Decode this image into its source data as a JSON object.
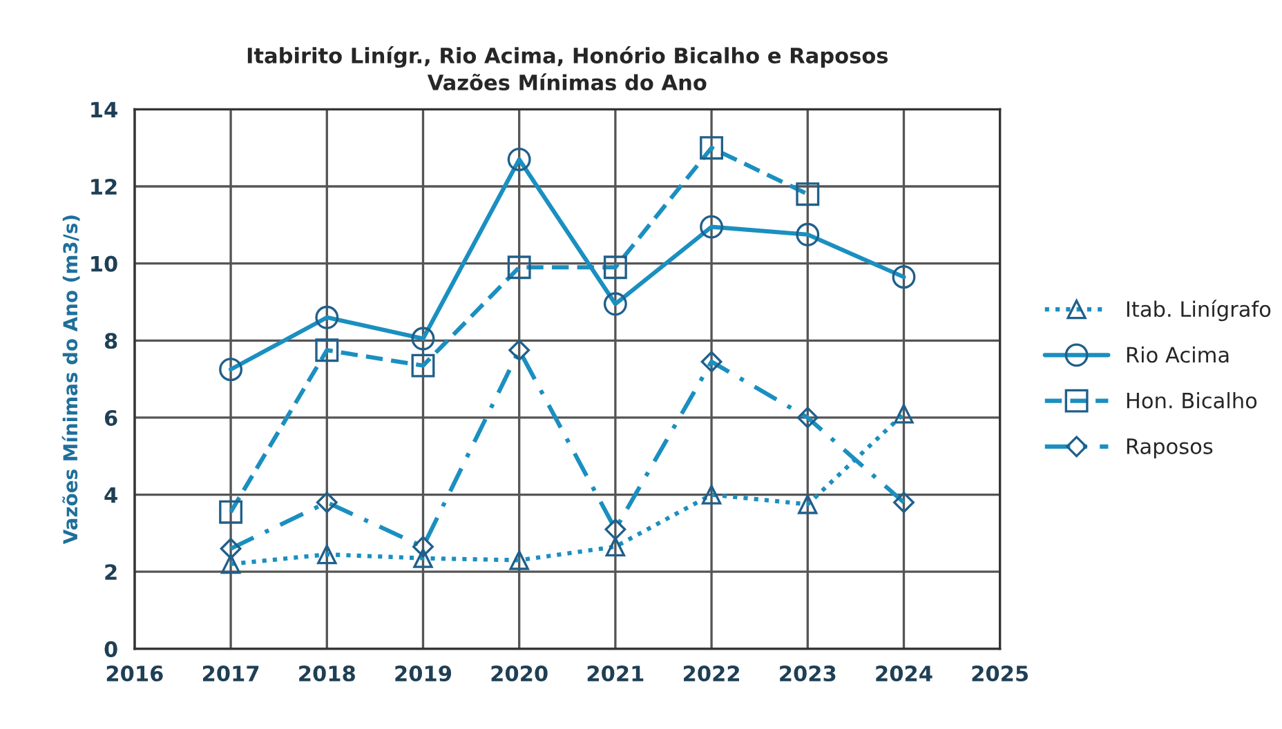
{
  "chart_data": {
    "type": "line",
    "title": "Itabirito Linígr., Rio Acima, Honório Bicalho e Raposos\nVazões Mínimas do Ano",
    "ylabel": "Vazões Mínimas do Ano (m3/s)",
    "x": [
      2017,
      2018,
      2019,
      2020,
      2021,
      2022,
      2023,
      2024
    ],
    "series": [
      {
        "name": "Itab. Linígrafo",
        "color": "#1a8fc0",
        "marker": "triangle",
        "line_style": "dotted",
        "values": [
          2.2,
          2.45,
          2.35,
          2.3,
          2.65,
          4.0,
          3.75,
          6.1
        ]
      },
      {
        "name": "Rio Acima",
        "color": "#1a8fc0",
        "marker": "circle",
        "line_style": "solid",
        "values": [
          7.25,
          8.6,
          8.05,
          12.7,
          8.95,
          10.95,
          10.75,
          9.65
        ]
      },
      {
        "name": "Hon. Bicalho",
        "color": "#1a8fc0",
        "marker": "square",
        "line_style": "dashed",
        "values": [
          3.55,
          7.75,
          7.35,
          9.9,
          9.9,
          13.0,
          11.8,
          null
        ]
      },
      {
        "name": "Raposos",
        "color": "#1a8fc0",
        "marker": "diamond",
        "line_style": "dashdot",
        "values": [
          2.6,
          3.8,
          2.65,
          7.75,
          3.1,
          7.45,
          6.0,
          3.8
        ]
      }
    ],
    "xlim": [
      2016,
      2025
    ],
    "xticks": [
      2016,
      2017,
      2018,
      2019,
      2020,
      2021,
      2022,
      2023,
      2024,
      2025
    ],
    "ylim": [
      0,
      14
    ],
    "yticks": [
      0,
      2,
      4,
      6,
      8,
      10,
      12,
      14
    ],
    "grid": true,
    "legend": "right"
  }
}
